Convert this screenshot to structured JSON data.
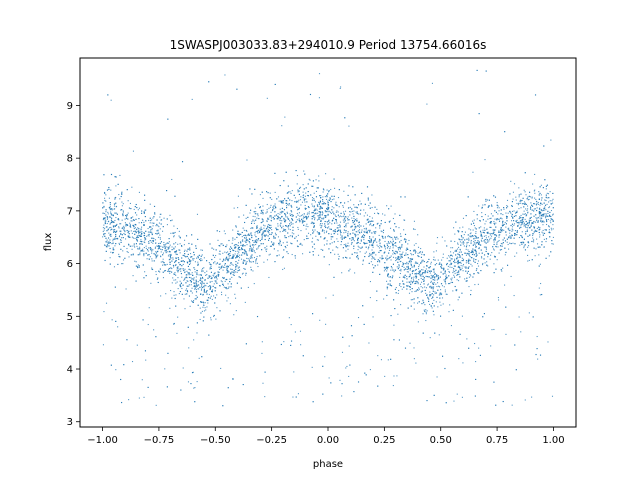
{
  "chart_data": {
    "type": "scatter",
    "title": "1SWASPJ003033.83+294010.9 Period 13754.66016s",
    "xlabel": "phase",
    "ylabel": "flux",
    "xlim": [
      -1.1,
      1.1
    ],
    "ylim": [
      2.9,
      9.9
    ],
    "xticks": [
      -1.0,
      -0.75,
      -0.5,
      -0.25,
      0.0,
      0.25,
      0.5,
      0.75,
      1.0
    ],
    "xtick_labels": [
      "−1.00",
      "−0.75",
      "−0.50",
      "−0.25",
      "0.00",
      "0.25",
      "0.50",
      "0.75",
      "1.00"
    ],
    "yticks": [
      3,
      4,
      5,
      6,
      7,
      8,
      9
    ],
    "ytick_labels": [
      "3",
      "4",
      "5",
      "6",
      "7",
      "8",
      "9"
    ],
    "grid": false,
    "marker_color": "#1f77b4",
    "series": [
      {
        "values_description_only": "",
        "x": [
          -1.0,
          -0.9,
          -0.8,
          -0.7,
          -0.6,
          -0.55,
          -0.5,
          -0.4,
          -0.3,
          -0.2,
          -0.1,
          0.0,
          0.1,
          0.2,
          0.3,
          0.4,
          0.45,
          0.5,
          0.6,
          0.7,
          0.8,
          0.9,
          1.0
        ],
        "y": [
          6.8,
          6.7,
          6.5,
          6.2,
          5.8,
          5.6,
          5.7,
          6.2,
          6.6,
          6.85,
          6.95,
          6.85,
          6.7,
          6.45,
          6.2,
          5.85,
          5.6,
          5.65,
          6.15,
          6.5,
          6.75,
          6.85,
          6.9
        ]
      }
    ]
  }
}
